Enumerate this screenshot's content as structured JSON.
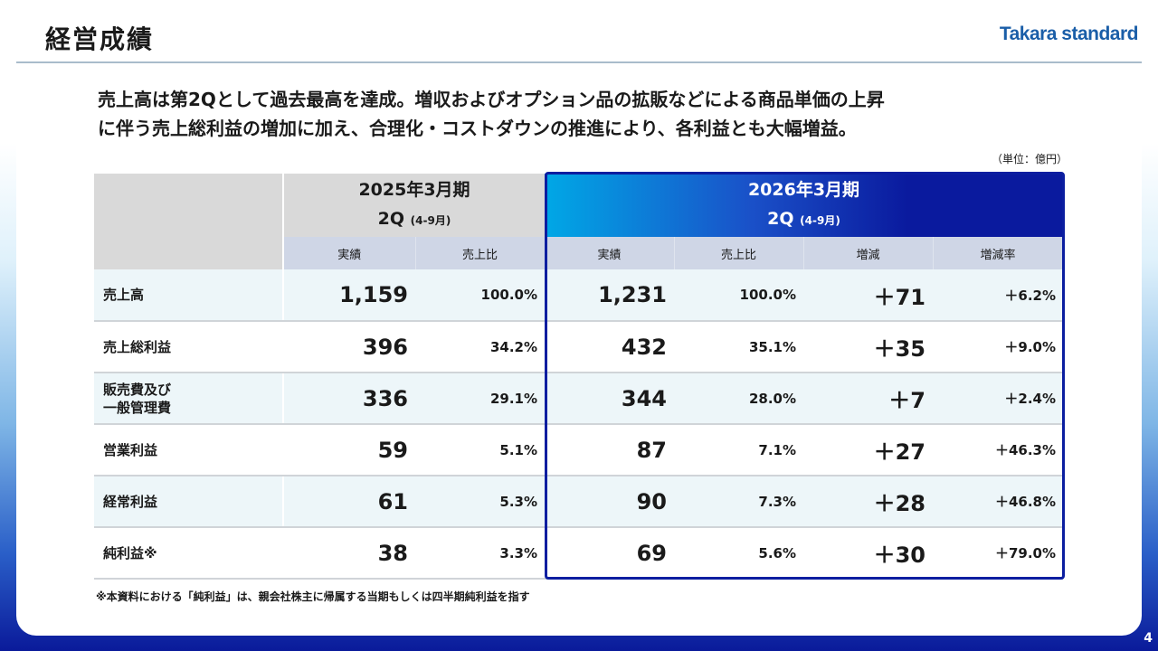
{
  "header": {
    "title": "経営成績",
    "logo": "Takara standard"
  },
  "lead": [
    "売上高は第2Qとして過去最高を達成。増収およびオプション品の拡販などによる商品単価の上昇",
    "に伴う売上総利益の増加に加え、合理化・コストダウンの推進により、各利益とも大幅増益。"
  ],
  "unit": "（単位：億円）",
  "table": {
    "prev": {
      "period": "2025年3月期",
      "quarter": "2Q",
      "range": "(4-9月)"
    },
    "curr": {
      "period": "2026年3月期",
      "quarter": "2Q",
      "range": "(4-9月)"
    },
    "columns": [
      "実績",
      "売上比",
      "実績",
      "売上比",
      "増減",
      "増減率"
    ],
    "rows": [
      {
        "label": "売上高",
        "prev": "1,159",
        "prev_ratio": "100.0%",
        "curr": "1,231",
        "curr_ratio": "100.0%",
        "diff": "＋71",
        "diff_rate": "＋6.2%"
      },
      {
        "label": "売上総利益",
        "prev": "396",
        "prev_ratio": "34.2%",
        "curr": "432",
        "curr_ratio": "35.1%",
        "diff": "＋35",
        "diff_rate": "＋9.0%"
      },
      {
        "label": "販売費及び\n一般管理費",
        "prev": "336",
        "prev_ratio": "29.1%",
        "curr": "344",
        "curr_ratio": "28.0%",
        "diff": "＋7",
        "diff_rate": "＋2.4%"
      },
      {
        "label": "営業利益",
        "prev": "59",
        "prev_ratio": "5.1%",
        "curr": "87",
        "curr_ratio": "7.1%",
        "diff": "＋27",
        "diff_rate": "＋46.3%"
      },
      {
        "label": "経常利益",
        "prev": "61",
        "prev_ratio": "5.3%",
        "curr": "90",
        "curr_ratio": "7.3%",
        "diff": "＋28",
        "diff_rate": "＋46.8%"
      },
      {
        "label": "純利益※",
        "prev": "38",
        "prev_ratio": "3.3%",
        "curr": "69",
        "curr_ratio": "5.6%",
        "diff": "＋30",
        "diff_rate": "＋79.0%"
      }
    ]
  },
  "footnote": "※本資料における「純利益」は、親会社株主に帰属する当期もしくは四半期純利益を指す",
  "page_number": "4"
}
